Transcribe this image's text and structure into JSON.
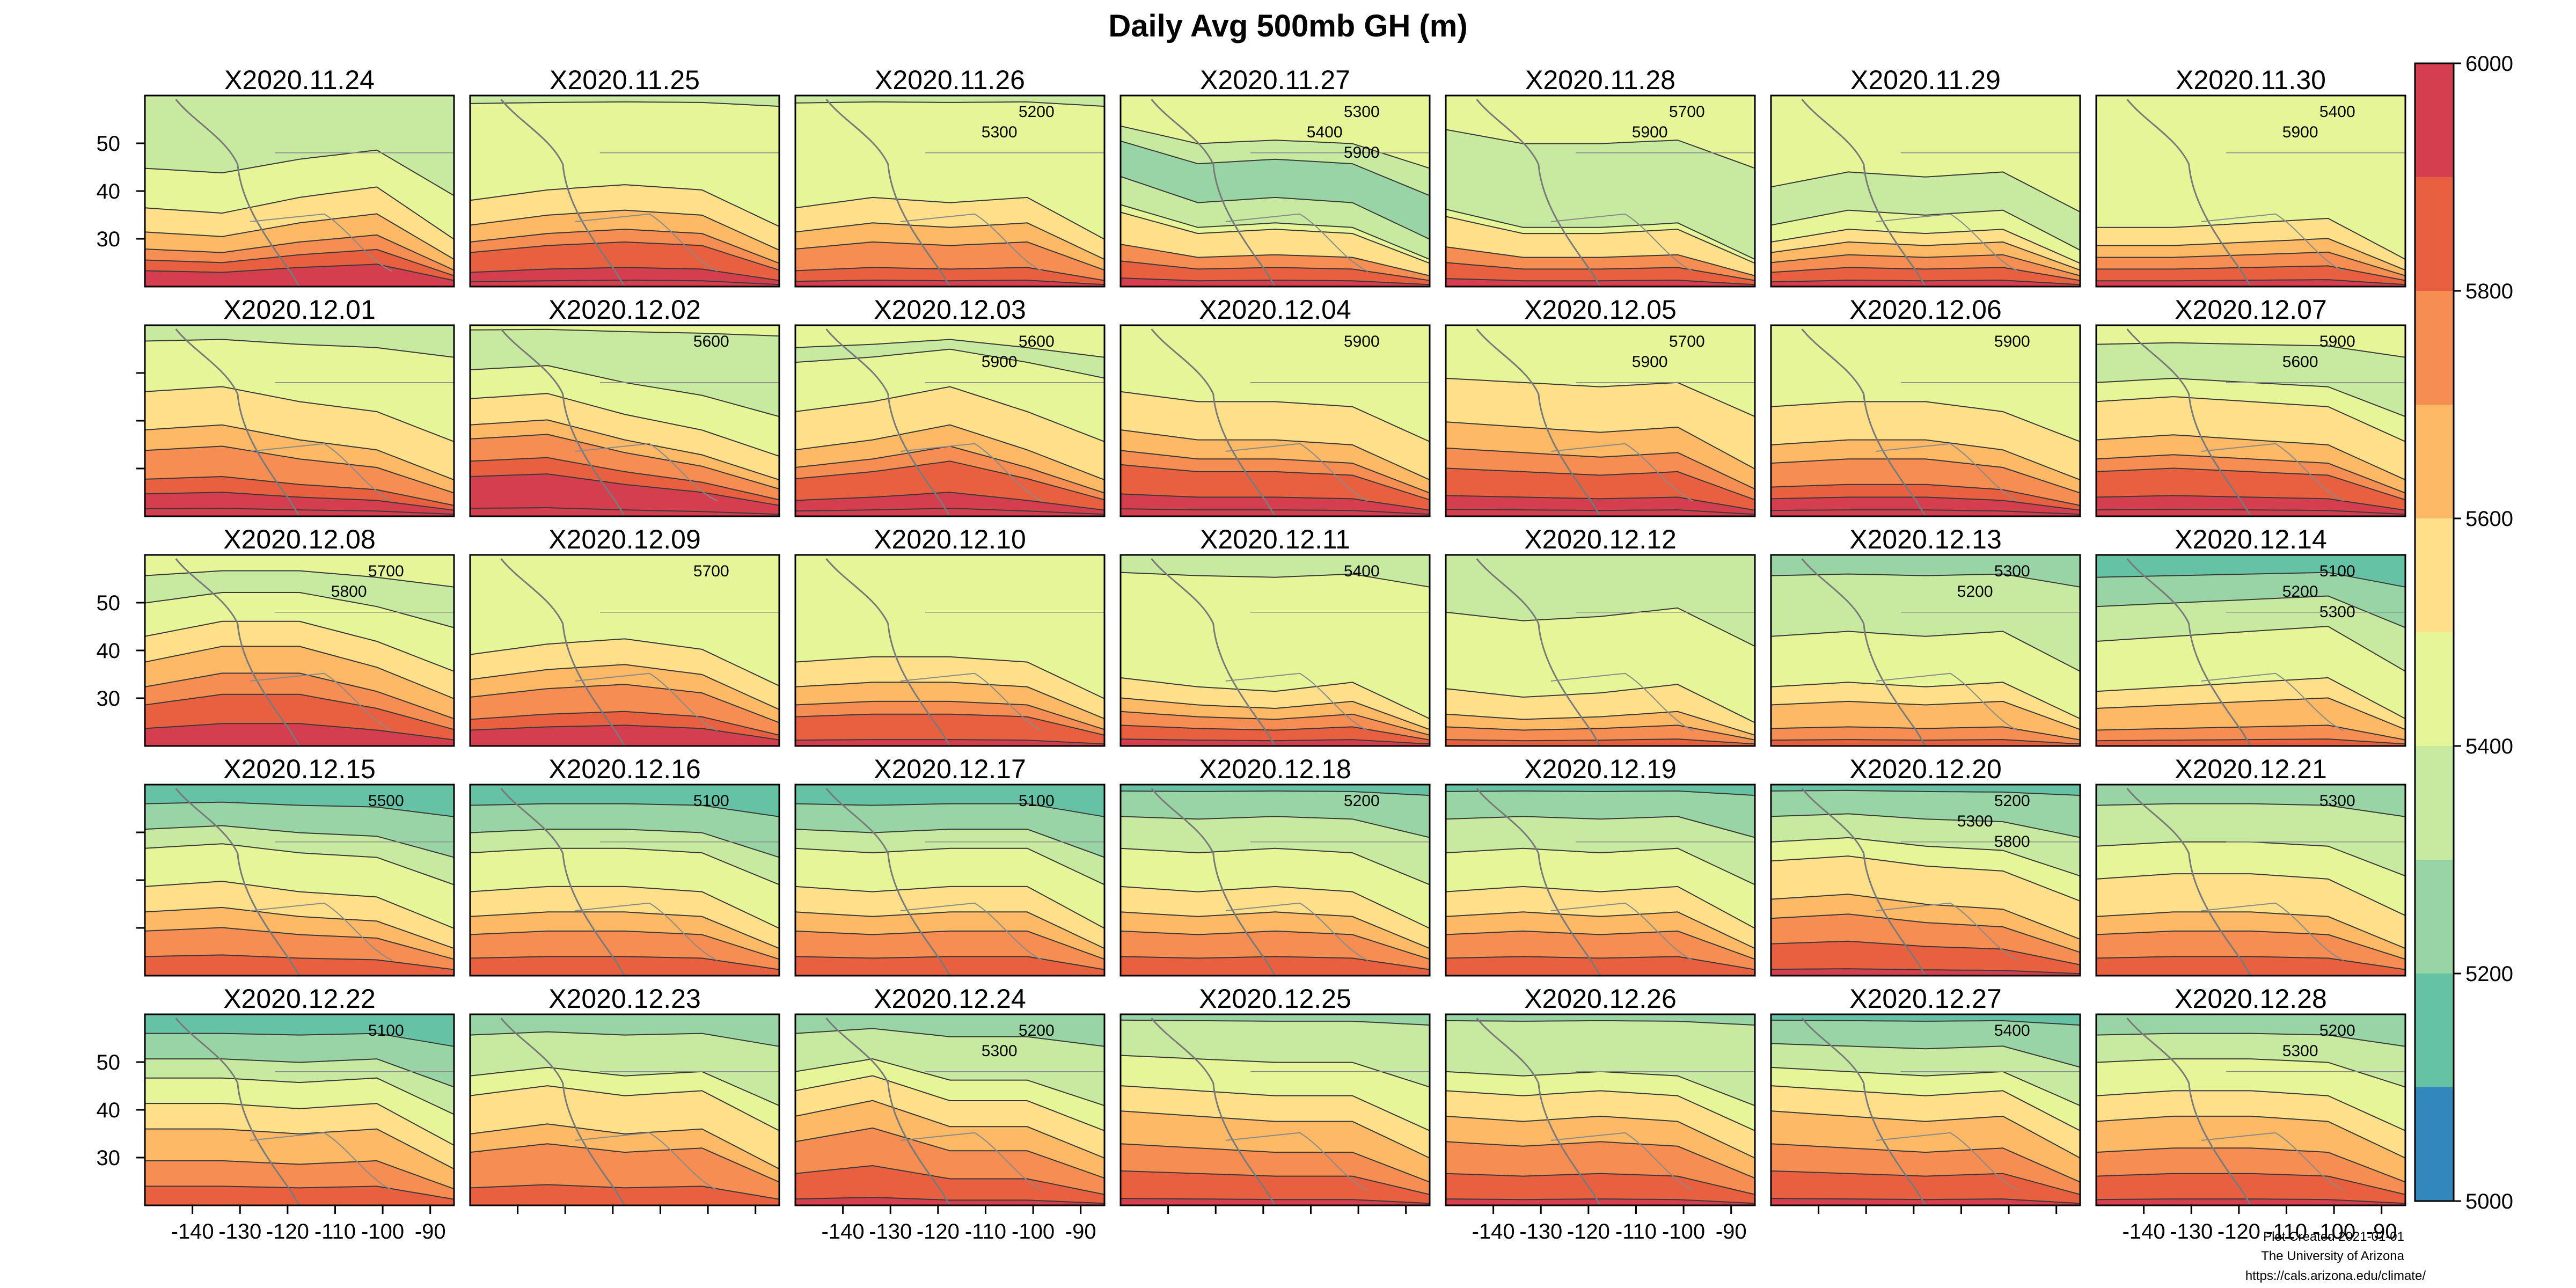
{
  "chart_data": {
    "type": "heatmap",
    "title": "Daily Avg 500mb GH (m)",
    "panels": [
      {
        "name": "X2020.11.24",
        "h": [
          5350,
          5350,
          5350,
          5350,
          5350,
          5350,
          5400,
          5400,
          5450,
          5500,
          5550,
          5600,
          5650,
          5750,
          5850,
          5900,
          5950
        ],
        "t": [
          0.6,
          0.65,
          0.5,
          0.4,
          0.9
        ]
      },
      {
        "name": "X2020.11.25",
        "h": [
          5350,
          5400,
          5400,
          5400,
          5400,
          5400,
          5400,
          5450,
          5500,
          5550,
          5600,
          5650,
          5700,
          5800,
          5850,
          5950,
          6000
        ],
        "t": [
          0.65,
          0.55,
          0.5,
          0.55,
          0.9
        ]
      },
      {
        "name": "X2020.11.26",
        "h": [
          5350,
          5400,
          5400,
          5450,
          5450,
          5450,
          5450,
          5450,
          5450,
          5500,
          5550,
          5600,
          5650,
          5700,
          5750,
          5850,
          5950
        ],
        "t": [
          0.6,
          0.5,
          0.55,
          0.5,
          0.9
        ]
      },
      {
        "name": "X2020.11.27",
        "h": [
          5400,
          5400,
          5400,
          5400,
          5350,
          5300,
          5250,
          5250,
          5250,
          5300,
          5300,
          5400,
          5500,
          5550,
          5700,
          5800,
          5950
        ],
        "t": [
          0.3,
          0.55,
          0.5,
          0.55,
          0.9
        ]
      },
      {
        "name": "X2020.11.28",
        "h": [
          5400,
          5450,
          5450,
          5400,
          5350,
          5350,
          5300,
          5300,
          5300,
          5300,
          5350,
          5450,
          5500,
          5550,
          5700,
          5800,
          5900
        ],
        "t": [
          0.35,
          0.55,
          0.55,
          0.5,
          0.9
        ]
      },
      {
        "name": "X2020.11.29",
        "h": [
          5400,
          5450,
          5450,
          5450,
          5450,
          5400,
          5400,
          5350,
          5350,
          5350,
          5400,
          5450,
          5500,
          5600,
          5700,
          5800,
          5950
        ],
        "t": [
          0.65,
          0.5,
          0.55,
          0.5,
          0.9
        ]
      },
      {
        "name": "X2020.11.30",
        "h": [
          5400,
          5450,
          5450,
          5450,
          5450,
          5400,
          5400,
          5400,
          5400,
          5400,
          5450,
          5500,
          5550,
          5600,
          5700,
          5800,
          5950
        ],
        "t": [
          0.55,
          0.55,
          0.5,
          0.45,
          0.9
        ]
      },
      {
        "name": "X2020.12.01",
        "h": [
          5300,
          5350,
          5400,
          5400,
          5400,
          5450,
          5450,
          5500,
          5500,
          5550,
          5600,
          5650,
          5700,
          5750,
          5850,
          5950,
          6000
        ],
        "t": [
          0.4,
          0.35,
          0.5,
          0.6,
          0.9
        ]
      },
      {
        "name": "X2020.12.02",
        "h": [
          5400,
          5350,
          5350,
          5350,
          5350,
          5400,
          5400,
          5450,
          5500,
          5550,
          5650,
          5700,
          5750,
          5800,
          5900,
          5950,
          6000
        ],
        "t": [
          0.35,
          0.3,
          0.5,
          0.65,
          0.9
        ]
      },
      {
        "name": "X2020.12.03",
        "h": [
          5400,
          5400,
          5350,
          5400,
          5400,
          5450,
          5450,
          5500,
          5500,
          5550,
          5600,
          5650,
          5700,
          5800,
          5850,
          5950,
          6000
        ],
        "t": [
          0.6,
          0.5,
          0.35,
          0.6,
          0.9
        ]
      },
      {
        "name": "X2020.12.04",
        "h": [
          5400,
          5400,
          5400,
          5400,
          5450,
          5450,
          5450,
          5500,
          5500,
          5550,
          5600,
          5650,
          5700,
          5800,
          5850,
          5950,
          6000
        ],
        "t": [
          0.4,
          0.5,
          0.5,
          0.55,
          0.9
        ]
      },
      {
        "name": "X2020.12.05",
        "h": [
          5450,
          5400,
          5400,
          5400,
          5450,
          5500,
          5500,
          5550,
          5550,
          5600,
          5650,
          5700,
          5750,
          5800,
          5850,
          5950,
          6000
        ],
        "t": [
          0.45,
          0.5,
          0.55,
          0.5,
          0.9
        ]
      },
      {
        "name": "X2020.12.06",
        "h": [
          5450,
          5450,
          5450,
          5450,
          5450,
          5450,
          5450,
          5500,
          5500,
          5550,
          5600,
          5650,
          5700,
          5750,
          5850,
          5950,
          6000
        ],
        "t": [
          0.55,
          0.5,
          0.5,
          0.6,
          0.9
        ]
      },
      {
        "name": "X2020.12.07",
        "h": [
          5400,
          5400,
          5350,
          5300,
          5350,
          5400,
          5450,
          5500,
          5550,
          5550,
          5600,
          5650,
          5700,
          5800,
          5850,
          5950,
          6000
        ],
        "t": [
          0.5,
          0.45,
          0.5,
          0.55,
          0.9
        ]
      },
      {
        "name": "X2020.12.08",
        "h": [
          5400,
          5400,
          5350,
          5350,
          5400,
          5400,
          5450,
          5500,
          5550,
          5600,
          5650,
          5700,
          5750,
          5800,
          5850,
          5900,
          5950
        ],
        "t": [
          0.55,
          0.4,
          0.4,
          0.6,
          0.9
        ]
      },
      {
        "name": "X2020.12.09",
        "h": [
          5400,
          5400,
          5400,
          5400,
          5400,
          5400,
          5400,
          5450,
          5500,
          5550,
          5600,
          5650,
          5700,
          5750,
          5850,
          5900,
          5950
        ],
        "t": [
          0.6,
          0.5,
          0.45,
          0.55,
          0.9
        ]
      },
      {
        "name": "X2020.12.10",
        "h": [
          5400,
          5400,
          5400,
          5400,
          5400,
          5400,
          5400,
          5450,
          5450,
          5500,
          5550,
          5600,
          5650,
          5700,
          5800,
          5850,
          5950
        ],
        "t": [
          0.55,
          0.5,
          0.5,
          0.55,
          0.9
        ]
      },
      {
        "name": "X2020.12.11",
        "h": [
          5300,
          5350,
          5400,
          5400,
          5400,
          5400,
          5400,
          5400,
          5450,
          5450,
          5450,
          5500,
          5550,
          5600,
          5700,
          5800,
          5900
        ],
        "t": [
          0.45,
          0.55,
          0.6,
          0.5,
          0.9
        ]
      },
      {
        "name": "X2020.12.12",
        "h": [
          5300,
          5300,
          5350,
          5350,
          5350,
          5400,
          5400,
          5400,
          5450,
          5450,
          5450,
          5450,
          5500,
          5550,
          5650,
          5750,
          5850
        ],
        "t": [
          0.5,
          0.6,
          0.55,
          0.45,
          0.9
        ]
      },
      {
        "name": "X2020.12.13",
        "h": [
          5200,
          5250,
          5300,
          5300,
          5300,
          5350,
          5350,
          5400,
          5400,
          5450,
          5450,
          5500,
          5550,
          5600,
          5650,
          5750,
          5850
        ],
        "t": [
          0.55,
          0.5,
          0.55,
          0.5,
          0.9
        ]
      },
      {
        "name": "X2020.12.14",
        "h": [
          5100,
          5150,
          5200,
          5250,
          5300,
          5350,
          5350,
          5400,
          5400,
          5450,
          5450,
          5500,
          5550,
          5600,
          5650,
          5750,
          5850
        ],
        "t": [
          0.6,
          0.55,
          0.5,
          0.45,
          0.9
        ]
      },
      {
        "name": "X2020.12.15",
        "h": [
          5100,
          5150,
          5200,
          5250,
          5300,
          5350,
          5400,
          5450,
          5450,
          5500,
          5550,
          5600,
          5650,
          5700,
          5750,
          5800,
          5850
        ],
        "t": [
          0.5,
          0.45,
          0.55,
          0.6,
          0.9
        ]
      },
      {
        "name": "X2020.12.16",
        "h": [
          5100,
          5150,
          5200,
          5250,
          5300,
          5350,
          5400,
          5450,
          5450,
          5500,
          5550,
          5600,
          5650,
          5700,
          5750,
          5800,
          5850
        ],
        "t": [
          0.55,
          0.5,
          0.5,
          0.55,
          0.9
        ]
      },
      {
        "name": "X2020.12.17",
        "h": [
          5100,
          5150,
          5200,
          5250,
          5300,
          5350,
          5400,
          5450,
          5450,
          5500,
          5550,
          5600,
          5650,
          5700,
          5750,
          5800,
          5850
        ],
        "t": [
          0.5,
          0.55,
          0.5,
          0.5,
          0.9
        ]
      },
      {
        "name": "X2020.12.18",
        "h": [
          5150,
          5200,
          5250,
          5300,
          5350,
          5350,
          5400,
          5450,
          5450,
          5500,
          5550,
          5600,
          5650,
          5700,
          5750,
          5800,
          5850
        ],
        "t": [
          0.5,
          0.55,
          0.5,
          0.55,
          0.9
        ]
      },
      {
        "name": "X2020.12.19",
        "h": [
          5150,
          5200,
          5250,
          5300,
          5300,
          5350,
          5400,
          5450,
          5450,
          5500,
          5550,
          5600,
          5650,
          5700,
          5750,
          5800,
          5850
        ],
        "t": [
          0.55,
          0.5,
          0.55,
          0.5,
          0.9
        ]
      },
      {
        "name": "X2020.12.20",
        "h": [
          5150,
          5200,
          5250,
          5300,
          5350,
          5400,
          5450,
          5500,
          5550,
          5550,
          5600,
          5650,
          5700,
          5750,
          5800,
          5850,
          5900
        ],
        "t": [
          0.5,
          0.45,
          0.55,
          0.6,
          0.9
        ]
      },
      {
        "name": "X2020.12.21",
        "h": [
          5200,
          5250,
          5300,
          5300,
          5350,
          5400,
          5400,
          5450,
          5500,
          5550,
          5550,
          5600,
          5650,
          5700,
          5750,
          5800,
          5850
        ],
        "t": [
          0.55,
          0.5,
          0.5,
          0.55,
          0.9
        ]
      },
      {
        "name": "X2020.12.22",
        "h": [
          5100,
          5150,
          5200,
          5250,
          5300,
          5350,
          5400,
          5450,
          5500,
          5550,
          5600,
          5650,
          5650,
          5700,
          5750,
          5800,
          5850
        ],
        "t": [
          0.5,
          0.5,
          0.55,
          0.5,
          0.9
        ]
      },
      {
        "name": "X2020.12.23",
        "h": [
          5200,
          5250,
          5300,
          5300,
          5350,
          5400,
          5450,
          5500,
          5550,
          5550,
          5600,
          5650,
          5700,
          5700,
          5750,
          5800,
          5850
        ],
        "t": [
          0.55,
          0.45,
          0.55,
          0.5,
          0.9
        ]
      },
      {
        "name": "X2020.12.24",
        "h": [
          5200,
          5250,
          5300,
          5350,
          5350,
          5400,
          5450,
          5500,
          5550,
          5600,
          5650,
          5700,
          5700,
          5750,
          5800,
          5850,
          5900
        ],
        "t": [
          0.5,
          0.35,
          0.6,
          0.6,
          0.9
        ]
      },
      {
        "name": "X2020.12.25",
        "h": [
          5250,
          5300,
          5350,
          5350,
          5400,
          5400,
          5450,
          5500,
          5550,
          5600,
          5600,
          5650,
          5700,
          5750,
          5800,
          5850,
          5900
        ],
        "t": [
          0.45,
          0.5,
          0.55,
          0.55,
          0.9
        ]
      },
      {
        "name": "X2020.12.26",
        "h": [
          5250,
          5300,
          5300,
          5350,
          5350,
          5400,
          5450,
          5500,
          5550,
          5600,
          5650,
          5700,
          5700,
          5750,
          5800,
          5850,
          5900
        ],
        "t": [
          0.5,
          0.55,
          0.5,
          0.55,
          0.9
        ]
      },
      {
        "name": "X2020.12.27",
        "h": [
          5100,
          5200,
          5250,
          5300,
          5350,
          5400,
          5450,
          5500,
          5550,
          5600,
          5650,
          5650,
          5700,
          5750,
          5800,
          5850,
          5900
        ],
        "t": [
          0.45,
          0.5,
          0.55,
          0.5,
          0.9
        ]
      },
      {
        "name": "X2020.12.28",
        "h": [
          5200,
          5250,
          5300,
          5350,
          5400,
          5450,
          5450,
          5500,
          5550,
          5600,
          5650,
          5650,
          5700,
          5750,
          5800,
          5850,
          5900
        ],
        "t": [
          0.55,
          0.5,
          0.5,
          0.55,
          0.9
        ]
      }
    ],
    "lat_ticks": [
      30,
      40,
      50
    ],
    "lon_ticks": [
      -140,
      -130,
      -120,
      -110,
      -100,
      -90
    ],
    "lat_range": [
      20,
      60
    ],
    "lon_range": [
      -150,
      -85
    ],
    "y_tick_rows": [
      0,
      2,
      4
    ],
    "x_tick_cols": [
      0,
      2,
      4,
      6
    ],
    "colorbar": {
      "min": 5000,
      "max": 6000,
      "step": 100,
      "labels": [
        5000,
        5200,
        5400,
        5600,
        5800,
        6000
      ],
      "colors": [
        "#3288bd",
        "#66c2a5",
        "#99d5a4",
        "#c7e9a0",
        "#e6f598",
        "#fee08b",
        "#fdb965",
        "#f68d52",
        "#e8603f",
        "#d53e4f"
      ]
    },
    "contour_labels": [
      {
        "panel": 2,
        "text": "5200"
      },
      {
        "panel": 2,
        "text": "5300"
      },
      {
        "panel": 3,
        "text": "5300"
      },
      {
        "panel": 3,
        "text": "5400"
      },
      {
        "panel": 3,
        "text": "5900"
      },
      {
        "panel": 4,
        "text": "5700"
      },
      {
        "panel": 4,
        "text": "5900"
      },
      {
        "panel": 6,
        "text": "5400"
      },
      {
        "panel": 6,
        "text": "5900"
      },
      {
        "panel": 8,
        "text": "5600"
      },
      {
        "panel": 9,
        "text": "5600"
      },
      {
        "panel": 9,
        "text": "5900"
      },
      {
        "panel": 10,
        "text": "5900"
      },
      {
        "panel": 11,
        "text": "5700"
      },
      {
        "panel": 11,
        "text": "5900"
      },
      {
        "panel": 12,
        "text": "5900"
      },
      {
        "panel": 13,
        "text": "5900"
      },
      {
        "panel": 13,
        "text": "5600"
      },
      {
        "panel": 14,
        "text": "5700"
      },
      {
        "panel": 14,
        "text": "5800"
      },
      {
        "panel": 15,
        "text": "5700"
      },
      {
        "panel": 17,
        "text": "5400"
      },
      {
        "panel": 19,
        "text": "5300"
      },
      {
        "panel": 19,
        "text": "5200"
      },
      {
        "panel": 20,
        "text": "5100"
      },
      {
        "panel": 20,
        "text": "5200"
      },
      {
        "panel": 20,
        "text": "5300"
      },
      {
        "panel": 21,
        "text": "5500"
      },
      {
        "panel": 22,
        "text": "5100"
      },
      {
        "panel": 23,
        "text": "5100"
      },
      {
        "panel": 24,
        "text": "5200"
      },
      {
        "panel": 26,
        "text": "5200"
      },
      {
        "panel": 26,
        "text": "5300"
      },
      {
        "panel": 26,
        "text": "5800"
      },
      {
        "panel": 27,
        "text": "5300"
      },
      {
        "panel": 28,
        "text": "5100"
      },
      {
        "panel": 30,
        "text": "5200"
      },
      {
        "panel": 30,
        "text": "5300"
      },
      {
        "panel": 33,
        "text": "5400"
      },
      {
        "panel": 34,
        "text": "5200"
      },
      {
        "panel": 34,
        "text": "5300"
      }
    ]
  },
  "credits": {
    "plot_date": "Plot Created 2021-01-01",
    "institution": "The University of Arizona",
    "url": "https://cals.arizona.edu/climate/"
  }
}
